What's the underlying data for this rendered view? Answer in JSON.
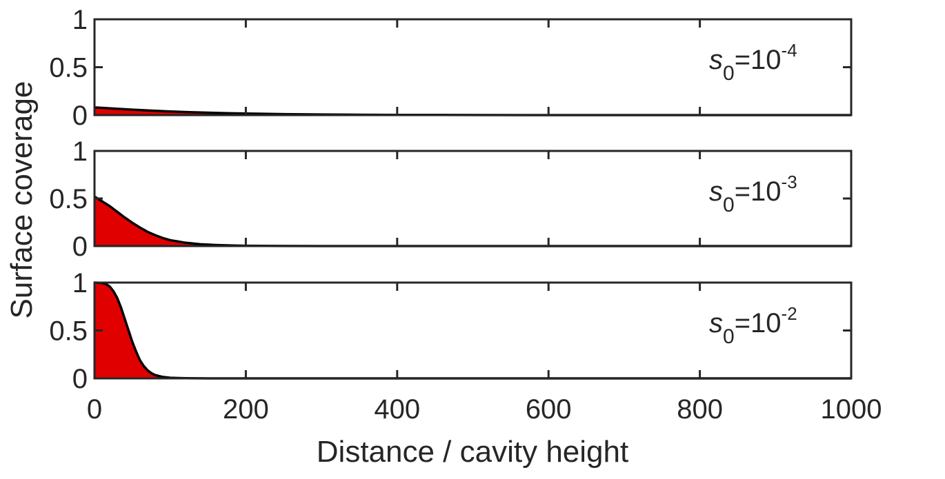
{
  "chart_data": {
    "type": "area",
    "xlabel": "Distance / cavity height",
    "ylabel": "Surface coverage",
    "xlim": [
      0,
      1000
    ],
    "ylim": [
      0,
      1
    ],
    "x_ticks": [
      "0",
      "200",
      "400",
      "600",
      "800",
      "1000"
    ],
    "y_ticks": [
      "0",
      "0.5",
      "1"
    ],
    "fill_color": "#e00000",
    "line_color": "#000000",
    "grid": false,
    "panels": [
      {
        "label": {
          "symbol": "s",
          "subscript": "0",
          "equals": "=10",
          "exponent": "-4"
        },
        "x": [
          0,
          25,
          50,
          75,
          100,
          125,
          150,
          175,
          200,
          250,
          300,
          350,
          400,
          500,
          600,
          700,
          800,
          900,
          1000
        ],
        "y": [
          0.08,
          0.068,
          0.057,
          0.047,
          0.038,
          0.031,
          0.025,
          0.02,
          0.016,
          0.01,
          0.006,
          0.004,
          0.002,
          0.001,
          0,
          0,
          0,
          0,
          0
        ]
      },
      {
        "label": {
          "symbol": "s",
          "subscript": "0",
          "equals": "=10",
          "exponent": "-3"
        },
        "x": [
          0,
          10,
          20,
          30,
          40,
          50,
          60,
          70,
          80,
          90,
          100,
          120,
          140,
          160,
          180,
          200,
          250,
          300,
          400,
          600,
          800,
          1000
        ],
        "y": [
          0.52,
          0.47,
          0.42,
          0.36,
          0.3,
          0.245,
          0.195,
          0.15,
          0.115,
          0.085,
          0.062,
          0.035,
          0.019,
          0.011,
          0.006,
          0.003,
          0.001,
          0,
          0,
          0,
          0,
          0
        ]
      },
      {
        "label": {
          "symbol": "s",
          "subscript": "0",
          "equals": "=10",
          "exponent": "-2"
        },
        "x": [
          0,
          5,
          10,
          15,
          20,
          25,
          30,
          35,
          40,
          45,
          50,
          55,
          60,
          65,
          70,
          75,
          80,
          90,
          100,
          120,
          150,
          200,
          300,
          1000
        ],
        "y": [
          1,
          0.998,
          0.995,
          0.985,
          0.96,
          0.91,
          0.84,
          0.74,
          0.62,
          0.5,
          0.38,
          0.28,
          0.19,
          0.13,
          0.085,
          0.055,
          0.035,
          0.015,
          0.006,
          0.002,
          0,
          0,
          0,
          0
        ]
      }
    ]
  }
}
